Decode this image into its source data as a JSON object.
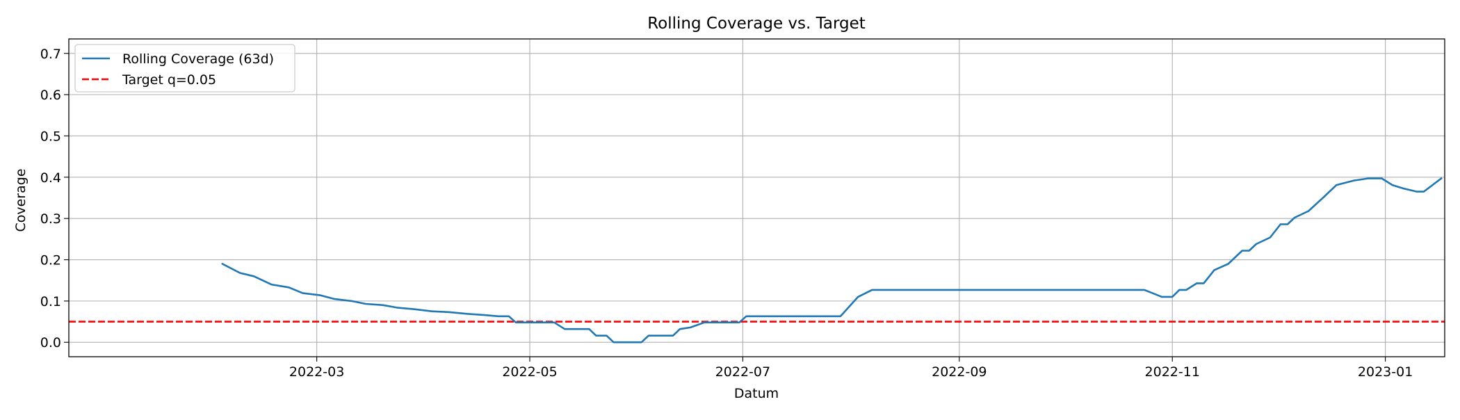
{
  "chart_data": {
    "type": "line",
    "title": "Rolling Coverage vs. Target",
    "xlabel": "Datum",
    "ylabel": "Coverage",
    "xlim": [
      "2021-12-20",
      "2023-01-18"
    ],
    "ylim": [
      -0.035,
      0.735
    ],
    "grid": true,
    "legend_position": "top-left",
    "x_ticks": [
      "2022-03",
      "2022-05",
      "2022-07",
      "2022-09",
      "2022-11",
      "2023-01"
    ],
    "x_tick_dates": [
      "2022-03-01",
      "2022-05-01",
      "2022-07-01",
      "2022-09-01",
      "2022-11-01",
      "2023-01-01"
    ],
    "y_ticks": [
      0.0,
      0.1,
      0.2,
      0.3,
      0.4,
      0.5,
      0.6,
      0.7
    ],
    "y_tick_labels": [
      "0.0",
      "0.1",
      "0.2",
      "0.3",
      "0.4",
      "0.5",
      "0.6",
      "0.7"
    ],
    "series": [
      {
        "name": "Rolling Coverage (63d)",
        "color": "#1f77b4",
        "style": "solid",
        "points": [
          [
            "2022-02-02",
            0.19
          ],
          [
            "2022-02-07",
            0.168
          ],
          [
            "2022-02-11",
            0.16
          ],
          [
            "2022-02-16",
            0.14
          ],
          [
            "2022-02-21",
            0.133
          ],
          [
            "2022-02-25",
            0.119
          ],
          [
            "2022-03-02",
            0.114
          ],
          [
            "2022-03-06",
            0.105
          ],
          [
            "2022-03-11",
            0.1
          ],
          [
            "2022-03-15",
            0.093
          ],
          [
            "2022-03-20",
            0.09
          ],
          [
            "2022-03-24",
            0.084
          ],
          [
            "2022-03-29",
            0.08
          ],
          [
            "2022-04-03",
            0.075
          ],
          [
            "2022-04-08",
            0.073
          ],
          [
            "2022-04-13",
            0.069
          ],
          [
            "2022-04-18",
            0.066
          ],
          [
            "2022-04-22",
            0.063
          ],
          [
            "2022-04-25",
            0.063
          ],
          [
            "2022-04-27",
            0.048
          ],
          [
            "2022-05-01",
            0.048
          ],
          [
            "2022-05-08",
            0.048
          ],
          [
            "2022-05-11",
            0.032
          ],
          [
            "2022-05-18",
            0.032
          ],
          [
            "2022-05-20",
            0.016
          ],
          [
            "2022-05-23",
            0.016
          ],
          [
            "2022-05-25",
            0.0
          ],
          [
            "2022-06-02",
            0.0
          ],
          [
            "2022-06-04",
            0.016
          ],
          [
            "2022-06-11",
            0.016
          ],
          [
            "2022-06-13",
            0.032
          ],
          [
            "2022-06-16",
            0.036
          ],
          [
            "2022-06-20",
            0.048
          ],
          [
            "2022-06-27",
            0.048
          ],
          [
            "2022-06-30",
            0.048
          ],
          [
            "2022-07-02",
            0.063
          ],
          [
            "2022-07-06",
            0.063
          ],
          [
            "2022-07-10",
            0.063
          ],
          [
            "2022-07-14",
            0.063
          ],
          [
            "2022-07-21",
            0.063
          ],
          [
            "2022-07-25",
            0.063
          ],
          [
            "2022-07-29",
            0.063
          ],
          [
            "2022-08-03",
            0.11
          ],
          [
            "2022-08-07",
            0.127
          ],
          [
            "2022-08-15",
            0.127
          ],
          [
            "2022-09-01",
            0.127
          ],
          [
            "2022-10-01",
            0.127
          ],
          [
            "2022-10-24",
            0.127
          ],
          [
            "2022-10-29",
            0.11
          ],
          [
            "2022-11-01",
            0.11
          ],
          [
            "2022-11-03",
            0.127
          ],
          [
            "2022-11-05",
            0.127
          ],
          [
            "2022-11-08",
            0.143
          ],
          [
            "2022-11-10",
            0.143
          ],
          [
            "2022-11-13",
            0.175
          ],
          [
            "2022-11-17",
            0.19
          ],
          [
            "2022-11-21",
            0.222
          ],
          [
            "2022-11-23",
            0.222
          ],
          [
            "2022-11-25",
            0.238
          ],
          [
            "2022-11-29",
            0.254
          ],
          [
            "2022-12-02",
            0.286
          ],
          [
            "2022-12-04",
            0.286
          ],
          [
            "2022-12-06",
            0.302
          ],
          [
            "2022-12-10",
            0.318
          ],
          [
            "2022-12-14",
            0.349
          ],
          [
            "2022-12-18",
            0.381
          ],
          [
            "2022-12-23",
            0.392
          ],
          [
            "2022-12-27",
            0.397
          ],
          [
            "2022-12-31",
            0.397
          ],
          [
            "2023-01-03",
            0.381
          ],
          [
            "2023-01-06",
            0.373
          ],
          [
            "2023-01-10",
            0.365
          ],
          [
            "2023-01-12",
            0.365
          ],
          [
            "2023-01-17",
            0.397
          ]
        ]
      },
      {
        "name": "Target q=0.05",
        "color": "#ff0000",
        "style": "dashed",
        "value": 0.05
      }
    ]
  }
}
